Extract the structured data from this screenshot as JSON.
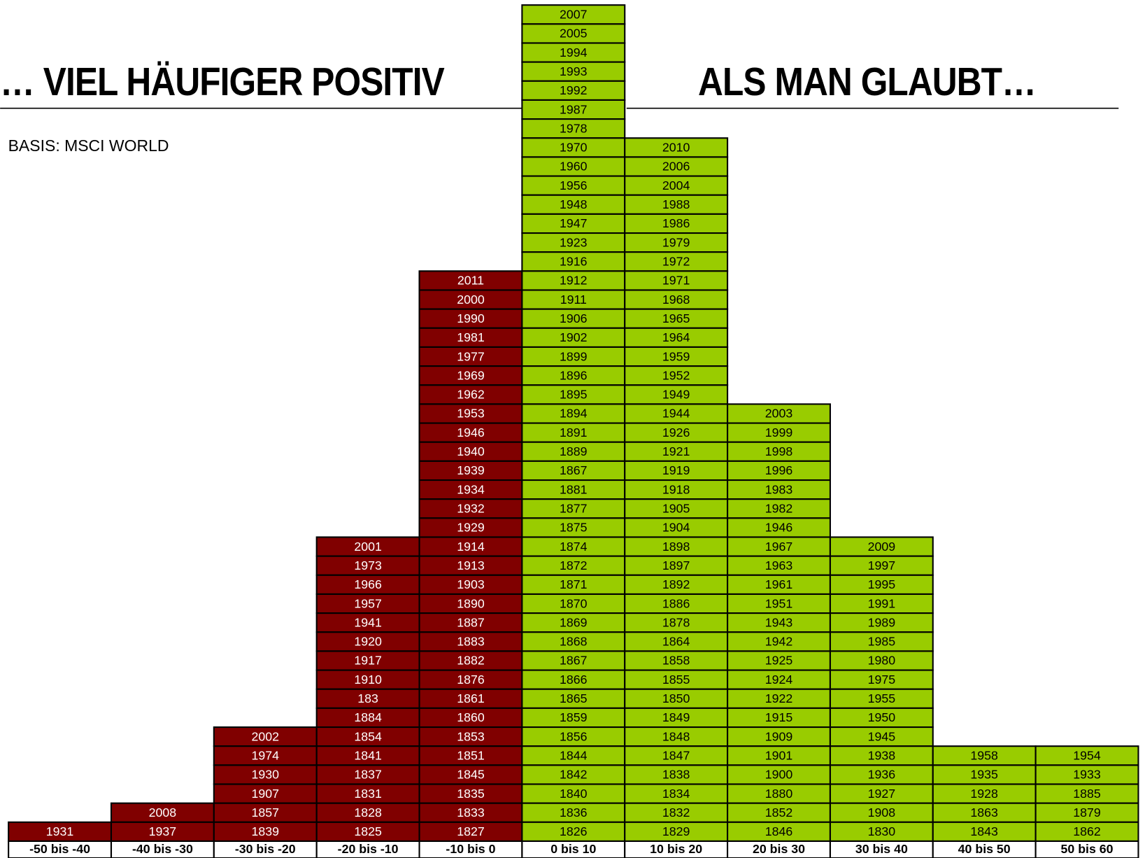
{
  "title_left": "… VIEL HÄUFIGER POSITIV",
  "title_right": "ALS MAN GLAUBT…",
  "subtitle": "BASIS: MSCI WORLD",
  "columns": [
    {
      "label": "-50 bis -40",
      "color": "#800000",
      "text_color": "#ffffff",
      "years": [
        "1931"
      ]
    },
    {
      "label": "-40 bis -30",
      "color": "#800000",
      "text_color": "#ffffff",
      "years": [
        "2008",
        "1937"
      ]
    },
    {
      "label": "-30 bis -20",
      "color": "#800000",
      "text_color": "#ffffff",
      "years": [
        "2002",
        "1974",
        "1930",
        "1907",
        "1857",
        "1839"
      ]
    },
    {
      "label": "-20 bis -10",
      "color": "#800000",
      "text_color": "#ffffff",
      "years": [
        "2001",
        "1973",
        "1966",
        "1957",
        "1941",
        "1920",
        "1917",
        "1910",
        "183",
        "1884",
        "1854",
        "1841",
        "1837",
        "1831",
        "1828",
        "1825"
      ]
    },
    {
      "label": "-10 bis 0",
      "color": "#800000",
      "text_color": "#ffffff",
      "years": [
        "2011",
        "2000",
        "1990",
        "1981",
        "1977",
        "1969",
        "1962",
        "1953",
        "1946",
        "1940",
        "1939",
        "1934",
        "1932",
        "1929",
        "1914",
        "1913",
        "1903",
        "1890",
        "1887",
        "1883",
        "1882",
        "1876",
        "1861",
        "1860",
        "1853",
        "1851",
        "1845",
        "1835",
        "1833",
        "1827"
      ]
    },
    {
      "label": "0 bis 10",
      "color": "#99cc00",
      "text_color": "#000000",
      "years": [
        "2007",
        "2005",
        "1994",
        "1993",
        "1992",
        "1987",
        "1978",
        "1970",
        "1960",
        "1956",
        "1948",
        "1947",
        "1923",
        "1916",
        "1912",
        "1911",
        "1906",
        "1902",
        "1899",
        "1896",
        "1895",
        "1894",
        "1891",
        "1889",
        "1867",
        "1881",
        "1877",
        "1875",
        "1874",
        "1872",
        "1871",
        "1870",
        "1869",
        "1868",
        "1867",
        "1866",
        "1865",
        "1859",
        "1856",
        "1844",
        "1842",
        "1840",
        "1836",
        "1826"
      ]
    },
    {
      "label": "10 bis 20",
      "color": "#99cc00",
      "text_color": "#000000",
      "years": [
        "2010",
        "2006",
        "2004",
        "1988",
        "1986",
        "1979",
        "1972",
        "1971",
        "1968",
        "1965",
        "1964",
        "1959",
        "1952",
        "1949",
        "1944",
        "1926",
        "1921",
        "1919",
        "1918",
        "1905",
        "1904",
        "1898",
        "1897",
        "1892",
        "1886",
        "1878",
        "1864",
        "1858",
        "1855",
        "1850",
        "1849",
        "1848",
        "1847",
        "1838",
        "1834",
        "1832",
        "1829"
      ]
    },
    {
      "label": "20 bis 30",
      "color": "#99cc00",
      "text_color": "#000000",
      "years": [
        "2003",
        "1999",
        "1998",
        "1996",
        "1983",
        "1982",
        "1946",
        "1967",
        "1963",
        "1961",
        "1951",
        "1943",
        "1942",
        "1925",
        "1924",
        "1922",
        "1915",
        "1909",
        "1901",
        "1900",
        "1880",
        "1852",
        "1846"
      ]
    },
    {
      "label": "30 bis 40",
      "color": "#99cc00",
      "text_color": "#000000",
      "years": [
        "2009",
        "1997",
        "1995",
        "1991",
        "1989",
        "1985",
        "1980",
        "1975",
        "1955",
        "1950",
        "1945",
        "1938",
        "1936",
        "1927",
        "1908",
        "1830"
      ]
    },
    {
      "label": "40 bis 50",
      "color": "#99cc00",
      "text_color": "#000000",
      "years": [
        "1958",
        "1935",
        "1928",
        "1863",
        "1843"
      ]
    },
    {
      "label": "50 bis 60",
      "color": "#99cc00",
      "text_color": "#000000",
      "years": [
        "1954",
        "1933",
        "1885",
        "1879",
        "1862"
      ]
    }
  ]
}
